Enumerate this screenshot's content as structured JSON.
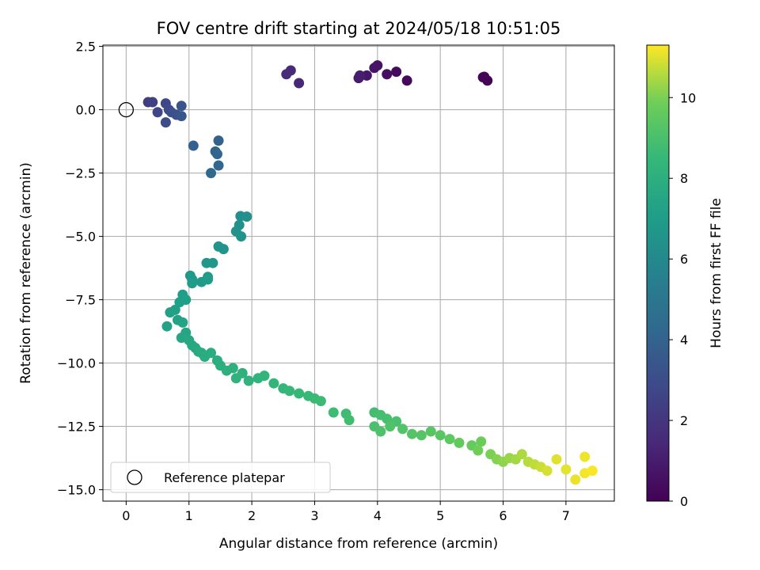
{
  "chart_data": {
    "type": "scatter",
    "title": "FOV centre drift starting at 2024/05/18 10:51:05",
    "xlabel": "Angular distance from reference (arcmin)",
    "ylabel": "Rotation from reference (arcmin)",
    "xlim": [
      -0.37,
      7.77
    ],
    "ylim": [
      -15.45,
      2.55
    ],
    "xticks": [
      "0",
      "1",
      "2",
      "3",
      "4",
      "5",
      "6",
      "7"
    ],
    "yticks": [
      "2.5",
      "0.0",
      "−2.5",
      "−5.0",
      "−7.5",
      "−10.0",
      "−12.5",
      "−15.0"
    ],
    "grid": true,
    "legend": {
      "position": "lower-left",
      "entries": [
        {
          "label": "Reference platepar",
          "marker": "open-circle"
        }
      ]
    },
    "reference_point": {
      "x": 0,
      "y": 0
    },
    "colorbar": {
      "label": "Hours from first FF file",
      "colormap": "viridis",
      "range": [
        0,
        11.3
      ],
      "ticks": [
        "0",
        "2",
        "4",
        "6",
        "8",
        "10"
      ]
    },
    "series": [
      {
        "points": [
          [
            5.75,
            1.15,
            0.05
          ],
          [
            5.7,
            1.3,
            0.1
          ],
          [
            5.68,
            1.28,
            0.15
          ],
          [
            4.47,
            1.15,
            0.3
          ],
          [
            4.3,
            1.5,
            0.4
          ],
          [
            4.15,
            1.4,
            0.5
          ],
          [
            4.0,
            1.75,
            0.6
          ],
          [
            3.95,
            1.65,
            0.7
          ],
          [
            3.83,
            1.35,
            0.8
          ],
          [
            3.7,
            1.25,
            0.9
          ],
          [
            3.72,
            1.35,
            1.0
          ],
          [
            2.75,
            1.05,
            1.4
          ],
          [
            2.62,
            1.55,
            1.5
          ],
          [
            2.55,
            1.4,
            1.6
          ],
          [
            0.35,
            0.3,
            2.3
          ],
          [
            0.42,
            0.3,
            2.5
          ],
          [
            0.5,
            -0.1,
            2.7
          ],
          [
            0.63,
            0.25,
            2.8
          ],
          [
            0.68,
            0.0,
            2.9
          ],
          [
            0.63,
            -0.5,
            3.0
          ],
          [
            0.72,
            -0.1,
            3.1
          ],
          [
            0.8,
            -0.2,
            3.2
          ],
          [
            0.88,
            0.15,
            3.3
          ],
          [
            0.88,
            -0.25,
            3.4
          ],
          [
            1.07,
            -1.42,
            3.9
          ],
          [
            1.47,
            -1.22,
            4.0
          ],
          [
            1.42,
            -1.65,
            4.1
          ],
          [
            1.45,
            -1.75,
            4.15
          ],
          [
            1.47,
            -2.2,
            4.2
          ],
          [
            1.35,
            -2.5,
            4.3
          ],
          [
            1.82,
            -4.2,
            6.3
          ],
          [
            1.92,
            -4.22,
            6.35
          ],
          [
            1.8,
            -4.55,
            6.4
          ],
          [
            1.75,
            -4.8,
            6.45
          ],
          [
            1.83,
            -5.0,
            6.5
          ],
          [
            1.47,
            -5.4,
            6.55
          ],
          [
            1.55,
            -5.5,
            6.6
          ],
          [
            1.28,
            -6.05,
            6.65
          ],
          [
            1.38,
            -6.05,
            6.7
          ],
          [
            1.02,
            -6.55,
            6.75
          ],
          [
            1.05,
            -6.7,
            6.8
          ],
          [
            1.2,
            -6.8,
            6.85
          ],
          [
            1.3,
            -6.6,
            6.9
          ],
          [
            1.3,
            -6.7,
            6.95
          ],
          [
            1.05,
            -6.85,
            7.0
          ],
          [
            0.9,
            -7.3,
            7.05
          ],
          [
            0.95,
            -7.5,
            7.1
          ],
          [
            0.85,
            -7.6,
            7.15
          ],
          [
            0.78,
            -7.9,
            7.2
          ],
          [
            0.7,
            -8.0,
            7.25
          ],
          [
            0.82,
            -8.3,
            7.3
          ],
          [
            0.65,
            -8.55,
            7.35
          ],
          [
            0.9,
            -8.4,
            7.4
          ],
          [
            0.95,
            -8.8,
            7.45
          ],
          [
            0.88,
            -9.0,
            7.5
          ],
          [
            1.0,
            -9.1,
            7.55
          ],
          [
            1.05,
            -9.3,
            7.6
          ],
          [
            1.1,
            -9.4,
            7.65
          ],
          [
            1.15,
            -9.55,
            7.7
          ],
          [
            1.2,
            -9.6,
            7.75
          ],
          [
            1.25,
            -9.75,
            7.8
          ],
          [
            1.35,
            -9.6,
            7.85
          ],
          [
            1.45,
            -9.9,
            7.9
          ],
          [
            1.5,
            -10.1,
            7.95
          ],
          [
            1.6,
            -10.3,
            8.0
          ],
          [
            1.7,
            -10.2,
            8.05
          ],
          [
            1.85,
            -10.4,
            8.1
          ],
          [
            1.75,
            -10.6,
            8.15
          ],
          [
            1.95,
            -10.7,
            8.2
          ],
          [
            2.1,
            -10.6,
            8.25
          ],
          [
            2.2,
            -10.5,
            8.3
          ],
          [
            2.35,
            -10.8,
            8.35
          ],
          [
            2.5,
            -11.0,
            8.4
          ],
          [
            2.6,
            -11.1,
            8.45
          ],
          [
            2.75,
            -11.2,
            8.5
          ],
          [
            2.9,
            -11.3,
            8.55
          ],
          [
            3.0,
            -11.4,
            8.6
          ],
          [
            3.1,
            -11.5,
            8.65
          ],
          [
            3.3,
            -11.95,
            8.7
          ],
          [
            3.5,
            -12.0,
            8.75
          ],
          [
            3.55,
            -12.25,
            8.8
          ],
          [
            3.95,
            -11.95,
            8.85
          ],
          [
            4.05,
            -12.05,
            8.9
          ],
          [
            4.15,
            -12.2,
            8.95
          ],
          [
            4.3,
            -12.3,
            9.0
          ],
          [
            3.95,
            -12.5,
            9.05
          ],
          [
            4.05,
            -12.7,
            9.1
          ],
          [
            4.2,
            -12.5,
            9.15
          ],
          [
            4.4,
            -12.6,
            9.2
          ],
          [
            4.55,
            -12.8,
            9.25
          ],
          [
            4.7,
            -12.85,
            9.3
          ],
          [
            4.85,
            -12.7,
            9.35
          ],
          [
            5.0,
            -12.85,
            9.4
          ],
          [
            5.15,
            -13.0,
            9.5
          ],
          [
            5.3,
            -13.15,
            9.6
          ],
          [
            5.5,
            -13.25,
            9.7
          ],
          [
            5.65,
            -13.1,
            9.8
          ],
          [
            5.6,
            -13.45,
            9.9
          ],
          [
            5.8,
            -13.6,
            10.0
          ],
          [
            5.9,
            -13.8,
            10.1
          ],
          [
            6.0,
            -13.9,
            10.2
          ],
          [
            6.1,
            -13.75,
            10.3
          ],
          [
            6.2,
            -13.8,
            10.4
          ],
          [
            6.3,
            -13.6,
            10.5
          ],
          [
            6.4,
            -13.9,
            10.6
          ],
          [
            6.5,
            -14.0,
            10.7
          ],
          [
            6.6,
            -14.1,
            10.8
          ],
          [
            6.7,
            -14.25,
            10.9
          ],
          [
            6.85,
            -13.8,
            11.0
          ],
          [
            7.0,
            -14.2,
            11.05
          ],
          [
            7.15,
            -14.6,
            11.1
          ],
          [
            7.3,
            -13.7,
            11.15
          ],
          [
            7.3,
            -14.35,
            11.2
          ],
          [
            7.42,
            -14.25,
            11.25
          ]
        ]
      }
    ]
  }
}
